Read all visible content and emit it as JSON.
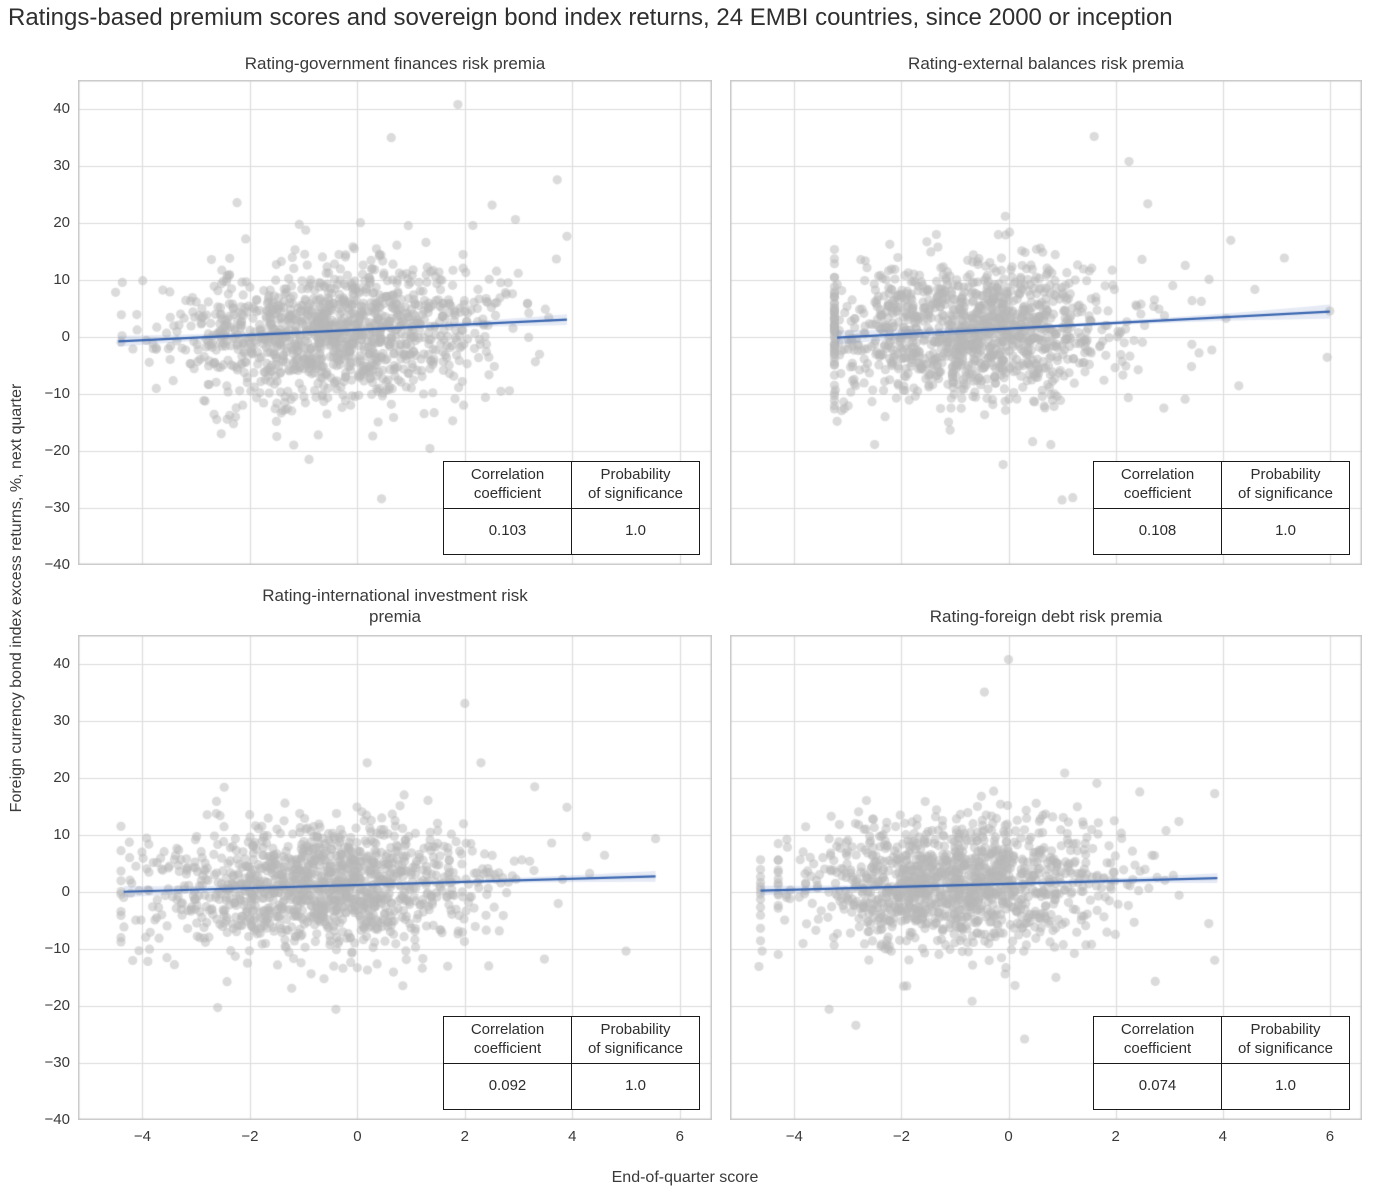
{
  "figure": {
    "title": "Ratings-based premium scores and sovereign bond index returns, 24 EMBI countries, since 2000 or inception",
    "xlabel": "End-of-quarter score",
    "ylabel": "Foreign currency bond index excess returns, %, next quarter",
    "colors": {
      "background": "#ffffff",
      "grid": "#dcdcdc",
      "spine": "#c8c8c8",
      "point": "rgba(184,184,184,0.5)",
      "trend_line": "#3a66b0",
      "confidence_band": "rgba(110,140,200,0.18)",
      "text": "#3a3a3a"
    }
  },
  "stats_table": {
    "headers": [
      "Correlation\ncoefficient",
      "Probability\nof significance"
    ]
  },
  "chart_data": [
    {
      "type": "scatter",
      "panel": "top-left",
      "title": "Rating-government finances risk premia",
      "xlim": [
        -5.2,
        6.6
      ],
      "ylim": [
        -40,
        45
      ],
      "xticks": [
        -4,
        -2,
        0,
        2,
        4,
        6
      ],
      "yticks": [
        -40,
        -30,
        -20,
        -10,
        0,
        10,
        20,
        30,
        40
      ],
      "grid": true,
      "correlation": 0.103,
      "significance_probability": 1.0,
      "stats": {
        "correlation": "0.103",
        "probability": "1.0"
      },
      "trendline": {
        "x": [
          -4.45,
          3.9
        ],
        "y": [
          -0.8,
          3.0
        ]
      },
      "band": {
        "half_width_mid": 0.3,
        "half_width_end": 0.95
      },
      "scatter_cloud": {
        "n": 1250,
        "seed": 11,
        "x_mean": -0.5,
        "x_sd": 1.45,
        "x_min": -4.5,
        "x_max": 3.92,
        "y_noise_sd": 6.0,
        "y_min": -29,
        "y_max": 36
      },
      "outlier_points": [
        [
          1.87,
          40.7
        ],
        [
          0.63,
          34.9
        ],
        [
          -2.24,
          23.5
        ],
        [
          3.72,
          27.5
        ],
        [
          3.9,
          17.6
        ],
        [
          2.15,
          19.5
        ],
        [
          0.45,
          -28.4
        ],
        [
          2.8,
          -25.5
        ],
        [
          -0.9,
          -21.5
        ],
        [
          1.35,
          -19.6
        ],
        [
          -1.5,
          -17.5
        ],
        [
          -4.4,
          -0.9
        ],
        [
          -4.1,
          1.2
        ],
        [
          -3.8,
          -2.1
        ]
      ]
    },
    {
      "type": "scatter",
      "panel": "top-right",
      "title": "Rating-external balances risk premia",
      "xlim": [
        -5.2,
        6.6
      ],
      "ylim": [
        -40,
        45
      ],
      "xticks": [
        -4,
        -2,
        0,
        2,
        4,
        6
      ],
      "yticks": [
        -40,
        -30,
        -20,
        -10,
        0,
        10,
        20,
        30,
        40
      ],
      "grid": true,
      "correlation": 0.108,
      "significance_probability": 1.0,
      "stats": {
        "correlation": "0.108",
        "probability": "1.0"
      },
      "trendline": {
        "x": [
          -3.2,
          6.0
        ],
        "y": [
          -0.15,
          4.4
        ]
      },
      "band": {
        "half_width_mid": 0.35,
        "half_width_end": 1.25
      },
      "scatter_cloud": {
        "n": 1250,
        "seed": 22,
        "x_mean": -0.75,
        "x_sd": 1.45,
        "x_min": -3.25,
        "x_max": 6.0,
        "y_noise_sd": 6.0,
        "y_min": -29,
        "y_max": 32
      },
      "outlier_points": [
        [
          1.6,
          35.1
        ],
        [
          2.25,
          30.7
        ],
        [
          2.6,
          23.3
        ],
        [
          4.15,
          16.9
        ],
        [
          5.15,
          13.8
        ],
        [
          4.6,
          8.3
        ],
        [
          6.0,
          4.5
        ],
        [
          5.95,
          -3.6
        ],
        [
          4.3,
          -8.6
        ],
        [
          1.0,
          -28.6
        ],
        [
          1.2,
          -28.2
        ],
        [
          -0.1,
          -22.4
        ],
        [
          -2.5,
          -18.9
        ],
        [
          3.3,
          12.5
        ],
        [
          3.6,
          6.2
        ],
        [
          2.9,
          -12.5
        ]
      ]
    },
    {
      "type": "scatter",
      "panel": "bottom-left",
      "title": "Rating-international investment risk\npremia",
      "xlim": [
        -5.2,
        6.6
      ],
      "ylim": [
        -40,
        45
      ],
      "xticks": [
        -4,
        -2,
        0,
        2,
        4,
        6
      ],
      "yticks": [
        -40,
        -30,
        -20,
        -10,
        0,
        10,
        20,
        30,
        40
      ],
      "grid": true,
      "correlation": 0.092,
      "significance_probability": 1.0,
      "stats": {
        "correlation": "0.092",
        "probability": "1.0"
      },
      "trendline": {
        "x": [
          -4.35,
          5.55
        ],
        "y": [
          0.0,
          2.7
        ]
      },
      "band": {
        "half_width_mid": 0.3,
        "half_width_end": 0.95
      },
      "scatter_cloud": {
        "n": 1250,
        "seed": 33,
        "x_mean": -0.7,
        "x_sd": 1.55,
        "x_min": -4.4,
        "x_max": 5.6,
        "y_noise_sd": 5.6,
        "y_min": -24,
        "y_max": 30
      },
      "outlier_points": [
        [
          2.0,
          33.0
        ],
        [
          2.3,
          22.6
        ],
        [
          3.3,
          18.4
        ],
        [
          5.55,
          9.3
        ],
        [
          4.6,
          6.4
        ],
        [
          5.0,
          -10.4
        ],
        [
          -2.6,
          -20.3
        ],
        [
          -0.4,
          -20.6
        ],
        [
          2.35,
          -23.5
        ],
        [
          -3.9,
          -12.2
        ],
        [
          -4.35,
          -1.0
        ],
        [
          -4.2,
          1.5
        ],
        [
          3.9,
          14.8
        ]
      ]
    },
    {
      "type": "scatter",
      "panel": "bottom-right",
      "title": "Rating-foreign debt risk premia",
      "xlim": [
        -5.2,
        6.6
      ],
      "ylim": [
        -40,
        45
      ],
      "xticks": [
        -4,
        -2,
        0,
        2,
        4,
        6
      ],
      "yticks": [
        -40,
        -30,
        -20,
        -10,
        0,
        10,
        20,
        30,
        40
      ],
      "grid": true,
      "correlation": 0.074,
      "significance_probability": 1.0,
      "stats": {
        "correlation": "0.074",
        "probability": "1.0"
      },
      "trendline": {
        "x": [
          -4.63,
          3.9
        ],
        "y": [
          0.2,
          2.4
        ]
      },
      "band": {
        "half_width_mid": 0.3,
        "half_width_end": 0.85
      },
      "scatter_cloud": {
        "n": 1250,
        "seed": 44,
        "x_mean": -1.0,
        "x_sd": 1.45,
        "x_min": -4.3,
        "x_max": 3.9,
        "y_noise_sd": 5.6,
        "y_min": -26,
        "y_max": 32
      },
      "outlier_points": [
        [
          0.0,
          40.7
        ],
        [
          -0.45,
          35.0
        ],
        [
          1.05,
          20.8
        ],
        [
          1.65,
          19.0
        ],
        [
          2.45,
          17.5
        ],
        [
          3.85,
          17.2
        ],
        [
          3.85,
          -12.0
        ],
        [
          -3.35,
          -20.6
        ],
        [
          -2.85,
          -23.4
        ],
        [
          0.3,
          -25.8
        ],
        [
          2.5,
          -23.0
        ],
        [
          -1.9,
          -16.5
        ],
        [
          -4.63,
          5.6
        ],
        [
          -4.63,
          3.9
        ],
        [
          -4.63,
          2.6
        ],
        [
          -4.63,
          1.6
        ],
        [
          -4.63,
          0.9
        ],
        [
          -4.63,
          0.3
        ],
        [
          -4.63,
          -0.4
        ],
        [
          -4.63,
          -1.3
        ],
        [
          -4.63,
          -2.7
        ],
        [
          -4.63,
          -4.1
        ],
        [
          -4.63,
          -6.4
        ],
        [
          -4.63,
          -8.6
        ],
        [
          -4.6,
          -10.4
        ],
        [
          -4.66,
          -13.1
        ]
      ]
    }
  ]
}
